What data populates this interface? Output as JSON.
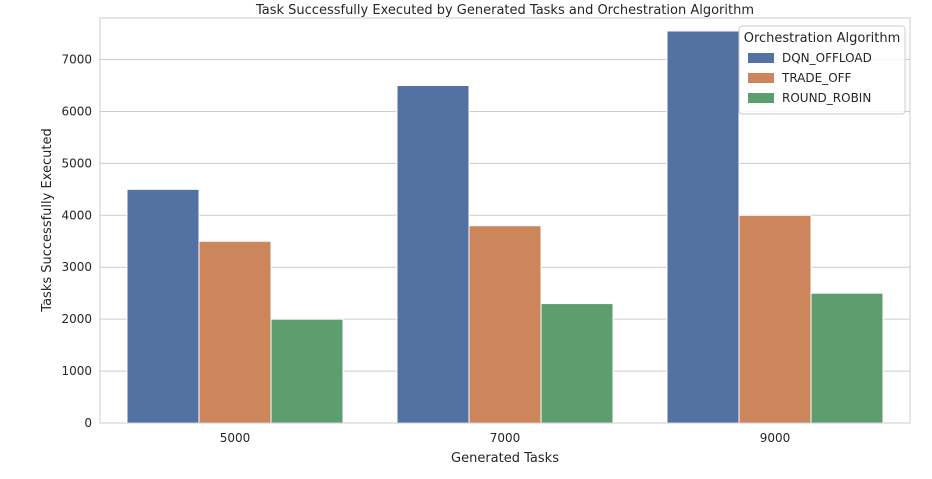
{
  "chart_data": {
    "type": "bar",
    "title": "Task Successfully Executed by Generated Tasks and Orchestration Algorithm",
    "xlabel": "Generated Tasks",
    "ylabel": "Tasks Successfully Executed",
    "categories": [
      "5000",
      "7000",
      "9000"
    ],
    "series": [
      {
        "name": "DQN_OFFLOAD",
        "color": "#5471a3",
        "values": [
          4500,
          6500,
          7550
        ]
      },
      {
        "name": "TRADE_OFF",
        "color": "#cd855c",
        "values": [
          3500,
          3800,
          4000
        ]
      },
      {
        "name": "ROUND_ROBIN",
        "color": "#5e9e6e",
        "values": [
          2000,
          2300,
          2500
        ]
      }
    ],
    "ylim": [
      0,
      7800
    ],
    "yticks": [
      0,
      1000,
      2000,
      3000,
      4000,
      5000,
      6000,
      7000
    ],
    "grid": true,
    "legend": {
      "title": "Orchestration Algorithm",
      "placement": "top-right"
    }
  }
}
